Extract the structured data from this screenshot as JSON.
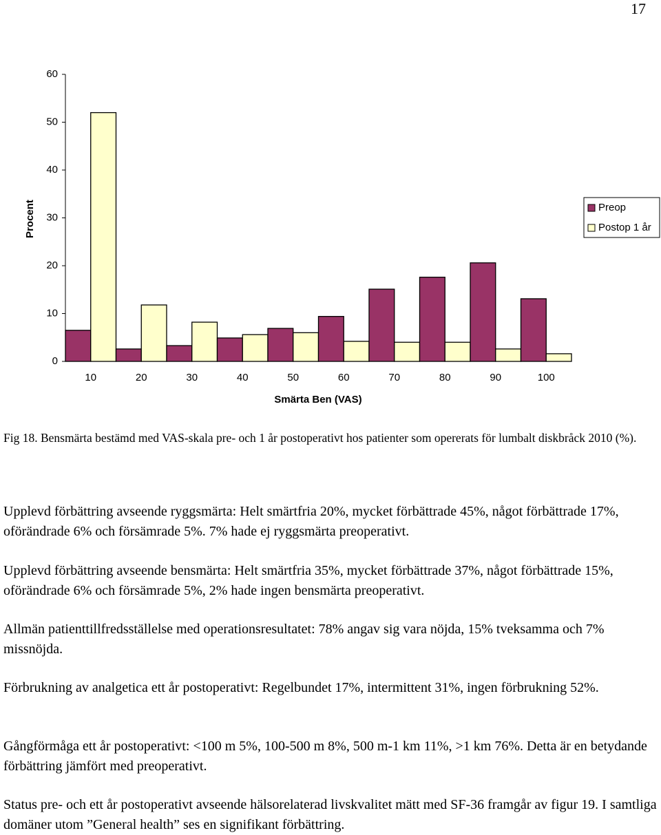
{
  "page_number": "17",
  "chart_data": {
    "type": "bar",
    "y_label": "Procent",
    "x_label": "Smärta Ben (VAS)",
    "categories": [
      "10",
      "20",
      "30",
      "40",
      "50",
      "60",
      "70",
      "80",
      "90",
      "100"
    ],
    "series": [
      {
        "name": "Preop",
        "color": "#993366",
        "values": [
          6.5,
          2.6,
          3.3,
          4.9,
          6.9,
          9.4,
          15.1,
          17.6,
          20.6,
          13.1
        ]
      },
      {
        "name": "Postop 1 år",
        "color": "#ffffcc",
        "values": [
          52,
          11.8,
          8.2,
          5.6,
          6.0,
          4.2,
          4.0,
          4.0,
          2.6,
          1.6
        ]
      }
    ],
    "ylim": [
      0,
      60
    ],
    "yticks": [
      0,
      10,
      20,
      30,
      40,
      50,
      60
    ],
    "grid": false,
    "legend": "right"
  },
  "caption": "Fig 18. Bensmärta bestämd med VAS-skala pre- och 1 år postoperativt hos patienter som opererats för lumbalt diskbråck 2010 (%).",
  "paragraphs": [
    "Upplevd förbättring avseende ryggsmärta: Helt smärtfria 20%, mycket förbättrade 45%, något förbättrade 17%, oförändrade 6% och försämrade 5%. 7% hade ej ryggsmärta preoperativt.",
    "Upplevd förbättring avseende bensmärta: Helt smärtfria 35%, mycket förbättrade 37%, något förbättrade 15%, oförändrade 6% och försämrade 5%, 2% hade ingen bensmärta preoperativt.",
    "Allmän patienttillfredsställelse med operationsresultatet: 78% angav sig vara nöjda, 15% tveksamma och 7% missnöjda.",
    "Förbrukning av analgetica ett år postoperativt: Regelbundet 17%, intermittent 31%, ingen förbrukning 52%.",
    "Gångförmåga ett år postoperativt: <100 m 5%, 100-500 m 8%, 500 m-1 km 11%, >1 km 76%. Detta är en betydande förbättring jämfört med preoperativt.",
    "Status pre- och ett år postoperativt avseende hälsorelaterad livskvalitet mätt med SF-36 framgår av figur 19. I samtliga domäner utom ”General health” ses en signifikant förbättring."
  ]
}
